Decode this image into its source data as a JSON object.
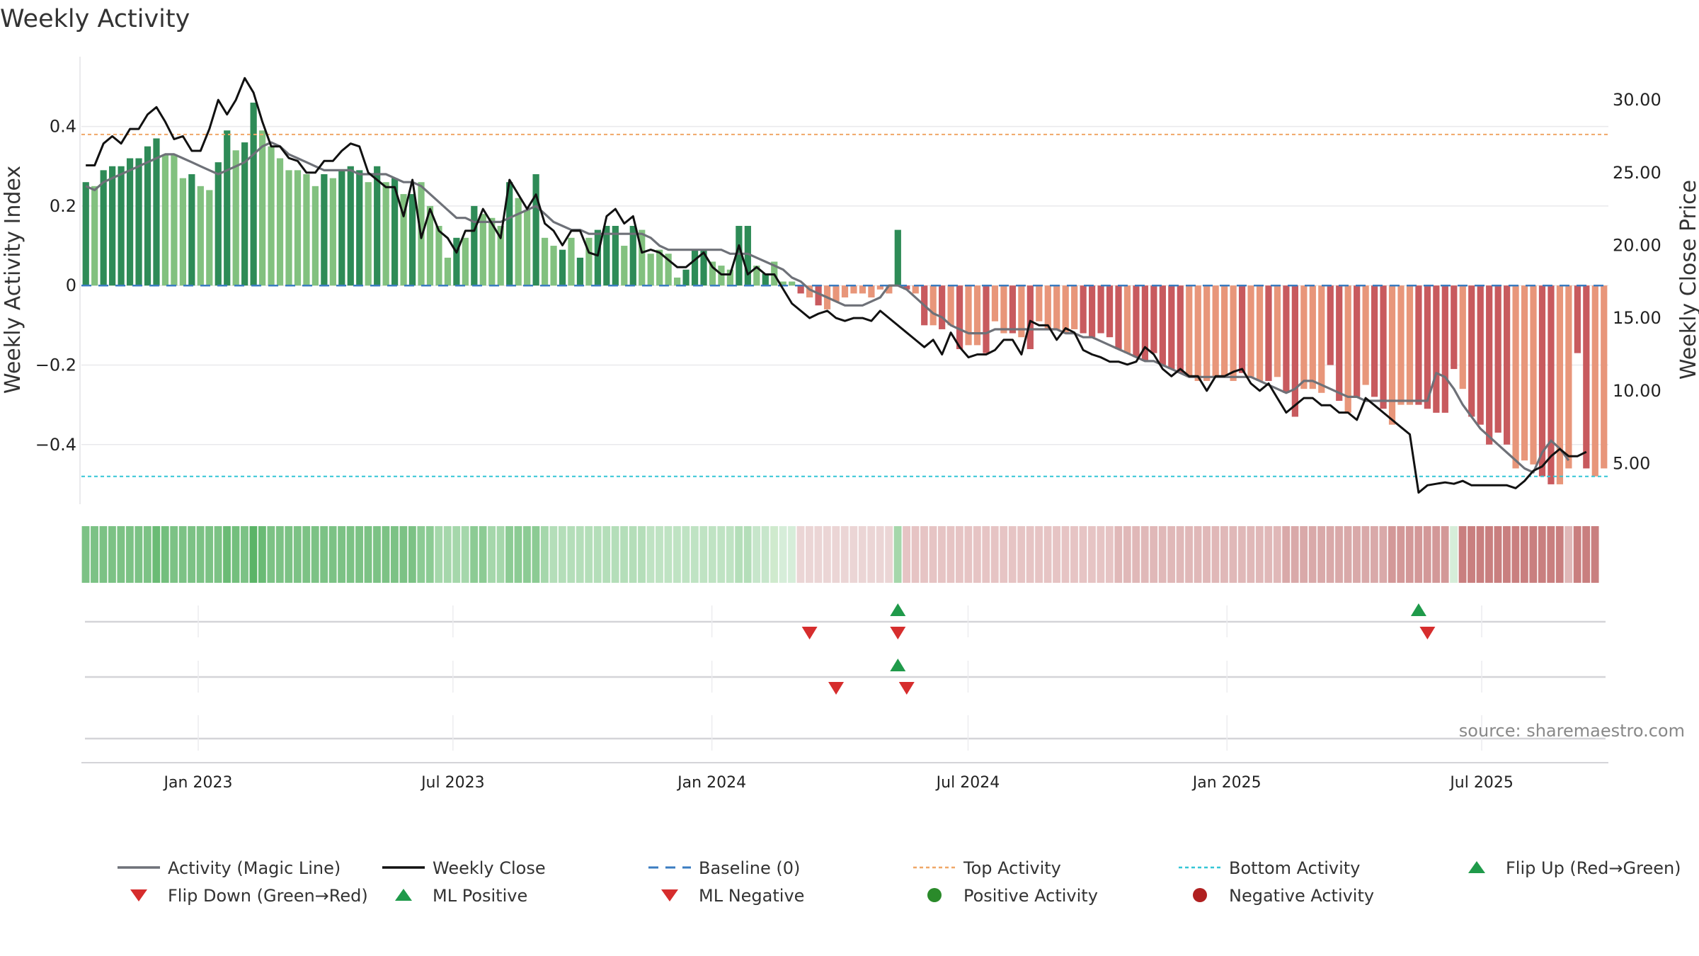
{
  "chart_data": {
    "type": "bar",
    "title": "Weekly Activity",
    "ylabel": "Weekly Activity Index",
    "y2label": "Weekly Close Price",
    "ylim": [
      -0.55,
      0.54
    ],
    "y2lim": [
      2.2,
      32.0
    ],
    "yticks": [
      {
        "v": 0.4,
        "label": "0.4"
      },
      {
        "v": 0.2,
        "label": "0.2"
      },
      {
        "v": 0,
        "label": "0"
      },
      {
        "v": -0.2,
        "label": "−0.2"
      },
      {
        "v": -0.4,
        "label": "−0.4"
      }
    ],
    "y2ticks": [
      {
        "v": 30,
        "label": "30.00"
      },
      {
        "v": 25,
        "label": "25.00"
      },
      {
        "v": 20,
        "label": "20.00"
      },
      {
        "v": 15,
        "label": "15.00"
      },
      {
        "v": 10,
        "label": "10.00"
      },
      {
        "v": 5,
        "label": "5.00"
      }
    ],
    "x_start": "2022-10-10",
    "x_end": "2025-09-29",
    "xticks": [
      {
        "date": "2023-01-01",
        "label": "Jan 2023"
      },
      {
        "date": "2023-07-01",
        "label": "Jul 2023"
      },
      {
        "date": "2024-01-01",
        "label": "Jan 2024"
      },
      {
        "date": "2024-07-01",
        "label": "Jul 2024"
      },
      {
        "date": "2025-01-01",
        "label": "Jan 2025"
      },
      {
        "date": "2025-07-01",
        "label": "Jul 2025"
      }
    ],
    "top_activity": 0.38,
    "bottom_activity": -0.48,
    "baseline": 0,
    "activity": [
      0.26,
      0.25,
      0.29,
      0.3,
      0.3,
      0.32,
      0.32,
      0.35,
      0.37,
      0.33,
      0.33,
      0.27,
      0.28,
      0.25,
      0.24,
      0.31,
      0.39,
      0.34,
      0.36,
      0.46,
      0.39,
      0.35,
      0.32,
      0.29,
      0.29,
      0.28,
      0.25,
      0.28,
      0.27,
      0.29,
      0.3,
      0.29,
      0.26,
      0.3,
      0.26,
      0.27,
      0.23,
      0.23,
      0.26,
      0.2,
      0.15,
      0.07,
      0.12,
      0.12,
      0.2,
      0.18,
      0.17,
      0.15,
      0.26,
      0.22,
      0.19,
      0.28,
      0.12,
      0.1,
      0.09,
      0.12,
      0.07,
      0.12,
      0.14,
      0.15,
      0.15,
      0.1,
      0.15,
      0.14,
      0.08,
      0.09,
      0.08,
      0.02,
      0.04,
      0.09,
      0.09,
      0.06,
      0.05,
      0.04,
      0.15,
      0.15,
      0.05,
      0.03,
      0.06,
      0.01,
      0.01,
      -0.02,
      -0.03,
      -0.05,
      -0.06,
      -0.04,
      -0.03,
      -0.02,
      -0.02,
      -0.03,
      -0.01,
      -0.02,
      0.14,
      -0.01,
      -0.02,
      -0.1,
      -0.1,
      -0.11,
      -0.1,
      -0.16,
      -0.15,
      -0.15,
      -0.17,
      -0.09,
      -0.12,
      -0.12,
      -0.13,
      -0.16,
      -0.09,
      -0.11,
      -0.11,
      -0.12,
      -0.11,
      -0.12,
      -0.13,
      -0.12,
      -0.13,
      -0.16,
      -0.17,
      -0.18,
      -0.19,
      -0.17,
      -0.2,
      -0.21,
      -0.22,
      -0.23,
      -0.24,
      -0.24,
      -0.23,
      -0.23,
      -0.24,
      -0.22,
      -0.23,
      -0.24,
      -0.24,
      -0.23,
      -0.27,
      -0.33,
      -0.26,
      -0.26,
      -0.27,
      -0.2,
      -0.29,
      -0.32,
      -0.28,
      -0.25,
      -0.28,
      -0.31,
      -0.35,
      -0.3,
      -0.3,
      -0.3,
      -0.31,
      -0.32,
      -0.32,
      -0.21,
      -0.26,
      -0.33,
      -0.35,
      -0.4,
      -0.37,
      -0.4,
      -0.46,
      -0.44,
      -0.45,
      -0.48,
      -0.5,
      -0.5,
      -0.46,
      -0.17,
      -0.46,
      -0.48,
      -0.46
    ],
    "strength": [
      1,
      0,
      1,
      1,
      1,
      1,
      1,
      1,
      1,
      0,
      0,
      0,
      1,
      0,
      0,
      1,
      1,
      0,
      1,
      1,
      0,
      0,
      0,
      0,
      0,
      0,
      0,
      1,
      0,
      1,
      1,
      1,
      0,
      1,
      0,
      1,
      0,
      1,
      0,
      0,
      0,
      0,
      1,
      0,
      1,
      0,
      0,
      0,
      1,
      0,
      0,
      1,
      0,
      0,
      1,
      0,
      1,
      0,
      1,
      1,
      1,
      0,
      1,
      0,
      0,
      0,
      0,
      0,
      1,
      1,
      1,
      0,
      0,
      0,
      1,
      1,
      0,
      1,
      0,
      0,
      0,
      1,
      0,
      1,
      0,
      0,
      0,
      0,
      0,
      0,
      0,
      0,
      1,
      1,
      0,
      1,
      0,
      1,
      0,
      1,
      0,
      0,
      1,
      0,
      0,
      1,
      0,
      1,
      0,
      0,
      0,
      0,
      0,
      1,
      1,
      1,
      1,
      1,
      0,
      1,
      1,
      1,
      1,
      1,
      1,
      0,
      0,
      0,
      0,
      0,
      0,
      1,
      0,
      0,
      1,
      0,
      1,
      1,
      0,
      0,
      0,
      1,
      1,
      0,
      1,
      0,
      1,
      1,
      0,
      0,
      0,
      1,
      1,
      1,
      1,
      1,
      0,
      1,
      1,
      1,
      1,
      1,
      0,
      0,
      0,
      1,
      1,
      0,
      0,
      1,
      1,
      0
    ],
    "magic_line": [
      0.25,
      0.24,
      0.26,
      0.27,
      0.28,
      0.29,
      0.3,
      0.31,
      0.32,
      0.33,
      0.33,
      0.32,
      0.31,
      0.3,
      0.29,
      0.28,
      0.29,
      0.3,
      0.31,
      0.33,
      0.35,
      0.36,
      0.35,
      0.33,
      0.32,
      0.31,
      0.3,
      0.29,
      0.29,
      0.29,
      0.29,
      0.28,
      0.28,
      0.28,
      0.28,
      0.27,
      0.26,
      0.26,
      0.25,
      0.23,
      0.21,
      0.19,
      0.17,
      0.17,
      0.16,
      0.16,
      0.16,
      0.16,
      0.17,
      0.18,
      0.19,
      0.2,
      0.18,
      0.16,
      0.15,
      0.14,
      0.14,
      0.13,
      0.13,
      0.13,
      0.13,
      0.13,
      0.13,
      0.13,
      0.12,
      0.1,
      0.09,
      0.09,
      0.09,
      0.09,
      0.09,
      0.09,
      0.09,
      0.08,
      0.08,
      0.08,
      0.07,
      0.06,
      0.05,
      0.04,
      0.02,
      0.01,
      -0.01,
      -0.02,
      -0.03,
      -0.04,
      -0.05,
      -0.05,
      -0.05,
      -0.04,
      -0.03,
      0.0,
      0.0,
      -0.01,
      -0.03,
      -0.05,
      -0.07,
      -0.08,
      -0.1,
      -0.11,
      -0.12,
      -0.12,
      -0.12,
      -0.11,
      -0.11,
      -0.11,
      -0.11,
      -0.11,
      -0.11,
      -0.11,
      -0.11,
      -0.12,
      -0.12,
      -0.13,
      -0.13,
      -0.14,
      -0.15,
      -0.16,
      -0.17,
      -0.18,
      -0.19,
      -0.19,
      -0.2,
      -0.21,
      -0.22,
      -0.23,
      -0.23,
      -0.23,
      -0.23,
      -0.23,
      -0.23,
      -0.23,
      -0.23,
      -0.24,
      -0.25,
      -0.26,
      -0.27,
      -0.26,
      -0.24,
      -0.24,
      -0.25,
      -0.26,
      -0.27,
      -0.28,
      -0.28,
      -0.29,
      -0.29,
      -0.29,
      -0.29,
      -0.29,
      -0.29,
      -0.29,
      -0.29,
      -0.22,
      -0.23,
      -0.26,
      -0.3,
      -0.33,
      -0.36,
      -0.38,
      -0.4,
      -0.42,
      -0.44,
      -0.46,
      -0.47,
      -0.42,
      -0.39,
      -0.41,
      -0.44
    ],
    "close": [
      25.5,
      25.5,
      27.0,
      27.5,
      27.0,
      28.0,
      28.0,
      29.0,
      29.5,
      28.5,
      27.3,
      27.5,
      26.5,
      26.5,
      28.0,
      30.0,
      29.0,
      30.0,
      31.5,
      30.5,
      28.5,
      26.8,
      26.8,
      26.0,
      25.8,
      25.0,
      25.0,
      25.8,
      25.8,
      26.5,
      27.0,
      26.8,
      25.0,
      24.5,
      24.0,
      24.0,
      22.0,
      24.5,
      20.5,
      22.5,
      21.0,
      20.5,
      19.5,
      21.0,
      21.0,
      22.5,
      21.5,
      20.5,
      24.5,
      23.5,
      22.5,
      23.5,
      21.5,
      21.0,
      20.0,
      21.0,
      21.0,
      19.5,
      19.3,
      22.0,
      22.5,
      21.5,
      22.0,
      19.5,
      19.7,
      19.5,
      19.0,
      18.5,
      18.5,
      19.0,
      19.5,
      18.5,
      18.0,
      18.0,
      20.0,
      18.0,
      18.5,
      18.0,
      18.0,
      17.0,
      16.0,
      15.5,
      15.0,
      15.3,
      15.5,
      15.0,
      14.8,
      15.0,
      15.0,
      14.8,
      15.5,
      15.0,
      14.5,
      14.0,
      13.5,
      13.0,
      13.5,
      12.5,
      14.0,
      13.0,
      12.3,
      12.5,
      12.5,
      12.8,
      13.5,
      13.5,
      12.5,
      14.8,
      14.5,
      14.5,
      13.5,
      14.3,
      14.0,
      12.8,
      12.5,
      12.3,
      12.0,
      12.0,
      11.8,
      12.0,
      13.0,
      12.5,
      11.5,
      11.0,
      11.5,
      11.0,
      11.0,
      10.0,
      11.0,
      11.0,
      11.3,
      11.5,
      10.5,
      10.0,
      10.5,
      9.5,
      8.5,
      9.0,
      9.5,
      9.5,
      9.0,
      9.0,
      8.5,
      8.5,
      8.0,
      9.5,
      9.0,
      8.5,
      8.0,
      7.5,
      7.0,
      3.0,
      3.5,
      3.6,
      3.7,
      3.6,
      3.8,
      3.5,
      3.5,
      3.5,
      3.5,
      3.5,
      3.3,
      3.8,
      4.5,
      4.8,
      5.5,
      6.0,
      5.5,
      5.5,
      5.8
    ],
    "strip_colors": [
      "#7cc285",
      "#7cc285",
      "#7cc285",
      "#7cc285",
      "#7cc285",
      "#7cc285",
      "#7cc285",
      "#7cc285",
      "#6abb75",
      "#73bf7d",
      "#7cc285",
      "#7cc285",
      "#7cc285",
      "#7cc285",
      "#7cc285",
      "#7cc285",
      "#6abb75",
      "#73bf7d",
      "#7cc285",
      "#5bb467",
      "#6abb75",
      "#7cc285",
      "#7cc285",
      "#7cc285",
      "#7cc285",
      "#7cc285",
      "#7cc285",
      "#7cc285",
      "#7cc285",
      "#7cc285",
      "#7cc285",
      "#7cc285",
      "#7cc285",
      "#7cc285",
      "#7cc285",
      "#7cc285",
      "#7cc285",
      "#7cc285",
      "#8ccb94",
      "#8ccb94",
      "#a5d7ab",
      "#a5d7ab",
      "#a5d7ab",
      "#a5d7ab",
      "#8ccb94",
      "#8ccb94",
      "#a5d7ab",
      "#a5d7ab",
      "#8ccb94",
      "#8ccb94",
      "#8ccb94",
      "#8ccb94",
      "#a5d7ab",
      "#b4deb9",
      "#b4deb9",
      "#b4deb9",
      "#b4deb9",
      "#b4deb9",
      "#b4deb9",
      "#b4deb9",
      "#b4deb9",
      "#b4deb9",
      "#b4deb9",
      "#b4deb9",
      "#bfe3c3",
      "#bfe3c3",
      "#bfe3c3",
      "#bfe3c3",
      "#bfe3c3",
      "#bfe3c3",
      "#bfe3c3",
      "#bfe3c3",
      "#bfe3c3",
      "#bfe3c3",
      "#b4deb9",
      "#b4deb9",
      "#c7e6cb",
      "#c7e6cb",
      "#cfeacd",
      "#d6edd9",
      "#d6edd9",
      "#ebd5d5",
      "#ebd5d5",
      "#ebd5d5",
      "#ebd5d5",
      "#ebd5d5",
      "#ebd5d5",
      "#ebd5d5",
      "#ebd5d5",
      "#ebd5d5",
      "#ebd5d5",
      "#ebd5d5",
      "#a5d7ab",
      "#e6c4c4",
      "#e6c4c4",
      "#e6c4c4",
      "#e6c4c4",
      "#e6c4c4",
      "#e6c4c4",
      "#e6c4c4",
      "#e6c4c4",
      "#e6c4c4",
      "#e6c4c4",
      "#e6c4c4",
      "#e6c4c4",
      "#e6c4c4",
      "#e6c4c4",
      "#e6c4c4",
      "#e6c4c4",
      "#e6c4c4",
      "#e6c4c4",
      "#e6c4c4",
      "#e6c4c4",
      "#e6c4c4",
      "#e6c4c4",
      "#e6c4c4",
      "#e6c4c4",
      "#e0b8b8",
      "#e0b8b8",
      "#e0b8b8",
      "#e0b8b8",
      "#e0b8b8",
      "#e0b8b8",
      "#e0b8b8",
      "#e0b8b8",
      "#e0b8b8",
      "#e0b8b8",
      "#e0b8b8",
      "#e0b8b8",
      "#e0b8b8",
      "#e0b8b8",
      "#e0b8b8",
      "#e0b8b8",
      "#e0b8b8",
      "#e0b8b8",
      "#e0b8b8",
      "#d9a9a9",
      "#d9a9a9",
      "#d9a9a9",
      "#d9a9a9",
      "#d9a9a9",
      "#d9a9a9",
      "#d9a9a9",
      "#d9a9a9",
      "#d9a9a9",
      "#d9a9a9",
      "#d9a9a9",
      "#d9a9a9",
      "#d39898",
      "#d39898",
      "#d39898",
      "#d39898",
      "#d39898",
      "#d39898",
      "#d39898",
      "#d6edd9",
      "#c97f7f",
      "#c97f7f",
      "#c97f7f",
      "#c97f7f",
      "#c97f7f",
      "#c97f7f",
      "#c97f7f",
      "#c97f7f",
      "#c97f7f",
      "#c97f7f",
      "#c97f7f",
      "#c97f7f",
      "#e0b8b8",
      "#c97f7f",
      "#c97f7f",
      "#c97f7f"
    ],
    "flip_up": [
      92,
      151
    ],
    "flip_down": [
      82,
      92,
      152
    ],
    "ml_positive": [
      92
    ],
    "ml_negative": [
      85,
      93
    ],
    "source": "source: sharemaestro.com",
    "legend": [
      {
        "label": "Activity (Magic Line)",
        "kind": "line",
        "color": "#6e7178"
      },
      {
        "label": "Weekly Close",
        "kind": "line",
        "color": "#111111"
      },
      {
        "label": "Baseline (0)",
        "kind": "dash",
        "color": "#3a7cc1"
      },
      {
        "label": "Top Activity",
        "kind": "dot-line",
        "color": "#f0a868"
      },
      {
        "label": "Bottom Activity",
        "kind": "dot-line",
        "color": "#35c6d6"
      },
      {
        "label": "Flip Up (Red→Green)",
        "kind": "tri-up",
        "color": "#1f9a4a"
      },
      {
        "label": "Flip Down (Green→Red)",
        "kind": "tri-down",
        "color": "#d62d2d"
      },
      {
        "label": "ML Positive",
        "kind": "tri-up",
        "color": "#1f9a4a"
      },
      {
        "label": "ML Negative",
        "kind": "tri-down",
        "color": "#d62d2d"
      },
      {
        "label": "Positive Activity",
        "kind": "circle",
        "color": "#2a8a2a"
      },
      {
        "label": "Negative Activity",
        "kind": "circle",
        "color": "#b02020"
      }
    ],
    "colors": {
      "pos_strong": "#2e8b57",
      "pos_weak": "#82c17f",
      "neg_strong": "#c85a5e",
      "neg_weak": "#e8967a",
      "magic_line": "#6e7178",
      "close": "#111111",
      "top": "#f0a868",
      "bottom": "#35c6d6",
      "baseline": "#3a7cc1"
    }
  }
}
